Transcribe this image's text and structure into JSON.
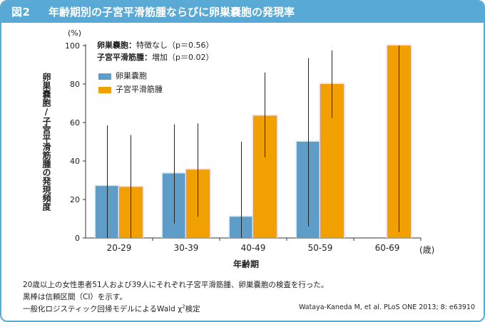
{
  "header": {
    "label": "図2",
    "title": "年齢期別の子宮平滑筋腫ならびに卵巣嚢胞の発現率"
  },
  "chart_data": {
    "type": "bar",
    "ylabel": "卵巣嚢胞/子宮平滑筋腫の発現頻度",
    "yunit": "(%)",
    "xlabel": "年齢期",
    "xunit": "(歳)",
    "ylim": [
      0,
      100
    ],
    "yticks": [
      "0",
      "20",
      "40",
      "60",
      "80",
      "100"
    ],
    "categories": [
      "20-29",
      "30-39",
      "40-49",
      "50-59",
      "60-69"
    ],
    "series": [
      {
        "name": "卵巣嚢胞",
        "color": "#5d9dc8",
        "values": [
          27,
          33.5,
          11,
          50,
          null
        ],
        "ci_low": [
          0,
          7.5,
          0,
          6,
          null
        ],
        "ci_high": [
          58.5,
          59,
          50,
          93.5,
          null
        ]
      },
      {
        "name": "子宮平滑筋腫",
        "color": "#f0a000",
        "values": [
          26.5,
          35.5,
          63.5,
          80,
          100
        ],
        "ci_low": [
          0,
          11,
          42,
          62.5,
          3
        ],
        "ci_high": [
          53.5,
          59.5,
          86,
          97.5,
          100
        ]
      }
    ],
    "stats": [
      {
        "name": "卵巣嚢胞",
        "value": "特徴なし（p＝0.56）"
      },
      {
        "name": "子宮平滑筋腫",
        "value": "増加（p＝0.02）"
      }
    ],
    "grid": false,
    "legend": "top-left"
  },
  "footnotes": {
    "line1": "20歳以上の女性患者51人および39人にそれぞれ子宮平滑筋腫、卵巣嚢胞の検査を行った。",
    "line2": "黒棒は信頼区間（CI）を示す。",
    "line3": "一般化ロジスティック回帰モデルによるWald χ",
    "line3_sup": "2",
    "line3_end": "検定"
  },
  "citation": "Wataya-Kaneda M, et al. PLoS ONE 2013; 8: e63910"
}
